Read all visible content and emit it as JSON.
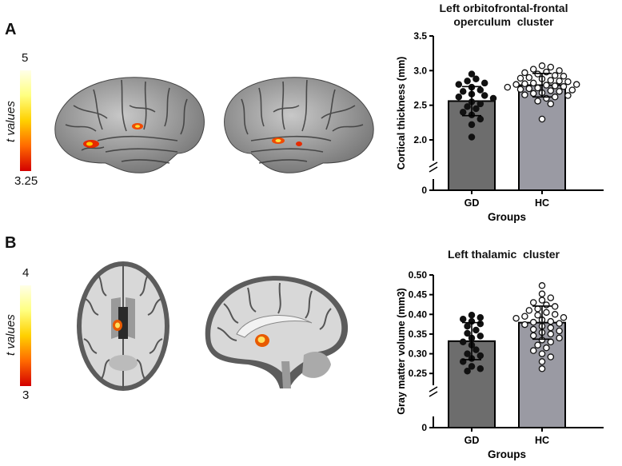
{
  "panels": [
    {
      "letter": "A",
      "colorbar": {
        "title": "t values",
        "max": "5",
        "min": "3.25",
        "colors": [
          "#d40000",
          "#ff6a00",
          "#ffd000",
          "#ffff80",
          "#ffffe8"
        ]
      },
      "images": [
        "lateral left hemisphere surface render",
        "lateral right hemisphere surface render"
      ]
    },
    {
      "letter": "B",
      "colorbar": {
        "title": "t values",
        "max": "4",
        "min": "3",
        "colors": [
          "#d40000",
          "#ff6a00",
          "#ffd000",
          "#ffff80",
          "#ffffe8"
        ]
      },
      "images": [
        "axial brain slice",
        "sagittal brain slice"
      ]
    }
  ],
  "chart_data": [
    {
      "type": "bar",
      "title_line1": "Left orbitofrontal-frontal",
      "title_line2": "operculum  cluster",
      "xlabel": "Groups",
      "ylabel": "Cortical thickness (mm)",
      "categories": [
        "GD",
        "HC"
      ],
      "values": [
        2.56,
        2.79
      ],
      "errors": [
        0.21,
        0.17
      ],
      "ylim": [
        1.7,
        3.5
      ],
      "yticks": [
        {
          "value": 2.0,
          "label": "2.0"
        },
        {
          "value": 2.5,
          "label": "2.5"
        },
        {
          "value": 3.0,
          "label": "3.0"
        },
        {
          "value": 3.5,
          "label": "3.5"
        }
      ],
      "break": true,
      "zero_label": "0",
      "bar_colors": [
        "#6d6d6d",
        "#9a9aa3"
      ],
      "point_styles": [
        "filled",
        "open"
      ],
      "points": [
        [
          2.95,
          2.88,
          2.85,
          2.82,
          2.8,
          2.76,
          2.72,
          2.7,
          2.66,
          2.64,
          2.62,
          2.6,
          2.55,
          2.52,
          2.48,
          2.45,
          2.4,
          2.36,
          2.3,
          2.22,
          2.04
        ],
        [
          3.07,
          3.05,
          3.02,
          3.0,
          2.98,
          2.97,
          2.95,
          2.93,
          2.92,
          2.9,
          2.89,
          2.88,
          2.86,
          2.85,
          2.84,
          2.82,
          2.81,
          2.8,
          2.8,
          2.79,
          2.78,
          2.77,
          2.76,
          2.75,
          2.74,
          2.73,
          2.72,
          2.71,
          2.7,
          2.68,
          2.67,
          2.65,
          2.64,
          2.62,
          2.6,
          2.56,
          2.52,
          2.3
        ]
      ]
    },
    {
      "type": "bar",
      "title_line1": "Left thalamic  cluster",
      "title_line2": "",
      "xlabel": "Groups",
      "ylabel": "Gray matter volume (mm3)",
      "categories": [
        "GD",
        "HC"
      ],
      "values": [
        0.332,
        0.379
      ],
      "errors": [
        0.047,
        0.042
      ],
      "ylim": [
        0.22,
        0.5
      ],
      "yticks": [
        {
          "value": 0.25,
          "label": "0.25"
        },
        {
          "value": 0.3,
          "label": "0.30"
        },
        {
          "value": 0.35,
          "label": "0.35"
        },
        {
          "value": 0.4,
          "label": "0.40"
        },
        {
          "value": 0.45,
          "label": "0.45"
        },
        {
          "value": 0.5,
          "label": "0.50"
        }
      ],
      "break": true,
      "zero_label": "0",
      "bar_colors": [
        "#6d6d6d",
        "#9a9aa3"
      ],
      "point_styles": [
        "filled",
        "open"
      ],
      "points": [
        [
          0.398,
          0.392,
          0.388,
          0.382,
          0.376,
          0.37,
          0.36,
          0.352,
          0.345,
          0.34,
          0.33,
          0.322,
          0.31,
          0.3,
          0.295,
          0.288,
          0.28,
          0.268,
          0.262,
          0.256
        ],
        [
          0.473,
          0.452,
          0.442,
          0.436,
          0.43,
          0.424,
          0.42,
          0.414,
          0.41,
          0.405,
          0.4,
          0.398,
          0.395,
          0.392,
          0.39,
          0.386,
          0.382,
          0.38,
          0.377,
          0.374,
          0.37,
          0.366,
          0.362,
          0.358,
          0.354,
          0.35,
          0.346,
          0.34,
          0.335,
          0.33,
          0.322,
          0.315,
          0.308,
          0.3,
          0.292,
          0.28,
          0.262
        ]
      ]
    }
  ]
}
